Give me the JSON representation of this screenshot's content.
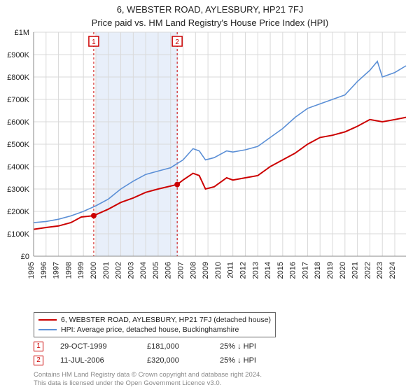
{
  "title_line1": "6, WEBSTER ROAD, AYLESBURY, HP21 7FJ",
  "title_line2": "Price paid vs. HM Land Registry's House Price Index (HPI)",
  "chart": {
    "type": "line",
    "background_color": "#ffffff",
    "grid_color": "#d9d9d9",
    "band_color": "#e8effa",
    "band_year_start": 2000,
    "band_year_end_fractional": 2006.6,
    "x_years": [
      1995,
      1996,
      1997,
      1998,
      1999,
      2000,
      2001,
      2002,
      2003,
      2004,
      2005,
      2006,
      2007,
      2008,
      2009,
      2010,
      2011,
      2012,
      2013,
      2014,
      2015,
      2016,
      2017,
      2018,
      2019,
      2020,
      2021,
      2022,
      2023,
      2024
    ],
    "xlim": [
      1995,
      2024.9
    ],
    "ylim": [
      0,
      1000000
    ],
    "ytick_step": 100000,
    "ytick_labels": [
      "£0",
      "£100K",
      "£200K",
      "£300K",
      "£400K",
      "£500K",
      "£600K",
      "£700K",
      "£800K",
      "£900K",
      "£1M"
    ],
    "tick_fontsize": 11,
    "series": [
      {
        "name": "subject",
        "label": "6, WEBSTER ROAD, AYLESBURY, HP21 7FJ (detached house)",
        "color": "#cc0000",
        "line_width": 2,
        "points": [
          [
            1995,
            120000
          ],
          [
            1996,
            128000
          ],
          [
            1997,
            135000
          ],
          [
            1998,
            150000
          ],
          [
            1998.83,
            175000
          ],
          [
            1999.83,
            181000
          ],
          [
            2001,
            210000
          ],
          [
            2002,
            240000
          ],
          [
            2003,
            260000
          ],
          [
            2004,
            285000
          ],
          [
            2005,
            300000
          ],
          [
            2006.53,
            320000
          ],
          [
            2007,
            340000
          ],
          [
            2007.8,
            370000
          ],
          [
            2008.3,
            360000
          ],
          [
            2008.8,
            300000
          ],
          [
            2009.5,
            310000
          ],
          [
            2010.5,
            350000
          ],
          [
            2011,
            340000
          ],
          [
            2012,
            350000
          ],
          [
            2013,
            360000
          ],
          [
            2014,
            400000
          ],
          [
            2015,
            430000
          ],
          [
            2016,
            460000
          ],
          [
            2017,
            500000
          ],
          [
            2018,
            530000
          ],
          [
            2019,
            540000
          ],
          [
            2020,
            555000
          ],
          [
            2021,
            580000
          ],
          [
            2022,
            610000
          ],
          [
            2023,
            600000
          ],
          [
            2024,
            610000
          ],
          [
            2024.9,
            620000
          ]
        ]
      },
      {
        "name": "hpi",
        "label": "HPI: Average price, detached house, Buckinghamshire",
        "color": "#5b8fd6",
        "line_width": 1.6,
        "points": [
          [
            1995,
            150000
          ],
          [
            1996,
            155000
          ],
          [
            1997,
            165000
          ],
          [
            1998,
            180000
          ],
          [
            1999,
            200000
          ],
          [
            2000,
            225000
          ],
          [
            2001,
            255000
          ],
          [
            2002,
            300000
          ],
          [
            2003,
            335000
          ],
          [
            2004,
            365000
          ],
          [
            2005,
            380000
          ],
          [
            2006,
            395000
          ],
          [
            2007,
            430000
          ],
          [
            2007.8,
            480000
          ],
          [
            2008.3,
            470000
          ],
          [
            2008.8,
            430000
          ],
          [
            2009.5,
            440000
          ],
          [
            2010.5,
            470000
          ],
          [
            2011,
            465000
          ],
          [
            2012,
            475000
          ],
          [
            2013,
            490000
          ],
          [
            2014,
            530000
          ],
          [
            2015,
            570000
          ],
          [
            2016,
            620000
          ],
          [
            2017,
            660000
          ],
          [
            2018,
            680000
          ],
          [
            2019,
            700000
          ],
          [
            2020,
            720000
          ],
          [
            2021,
            780000
          ],
          [
            2022,
            830000
          ],
          [
            2022.6,
            870000
          ],
          [
            2023,
            800000
          ],
          [
            2024,
            820000
          ],
          [
            2024.9,
            850000
          ]
        ]
      }
    ],
    "sale_markers": [
      {
        "num": "1",
        "year_fractional": 1999.83,
        "price": 181000
      },
      {
        "num": "2",
        "year_fractional": 2006.53,
        "price": 320000
      }
    ],
    "marker_color": "#cc0000",
    "marker_box_bg": "#ffffff",
    "marker_dashed_color": "#cc0000"
  },
  "legend": {
    "items": [
      {
        "color": "#cc0000",
        "width": 2,
        "label": "6, WEBSTER ROAD, AYLESBURY, HP21 7FJ (detached house)"
      },
      {
        "color": "#5b8fd6",
        "width": 1.6,
        "label": "HPI: Average price, detached house, Buckinghamshire"
      }
    ]
  },
  "sales_table": {
    "rows": [
      {
        "num": "1",
        "date": "29-OCT-1999",
        "price": "£181,000",
        "delta": "25% ↓ HPI"
      },
      {
        "num": "2",
        "date": "11-JUL-2006",
        "price": "£320,000",
        "delta": "25% ↓ HPI"
      }
    ]
  },
  "footer_line1": "Contains HM Land Registry data © Crown copyright and database right 2024.",
  "footer_line2": "This data is licensed under the Open Government Licence v3.0."
}
